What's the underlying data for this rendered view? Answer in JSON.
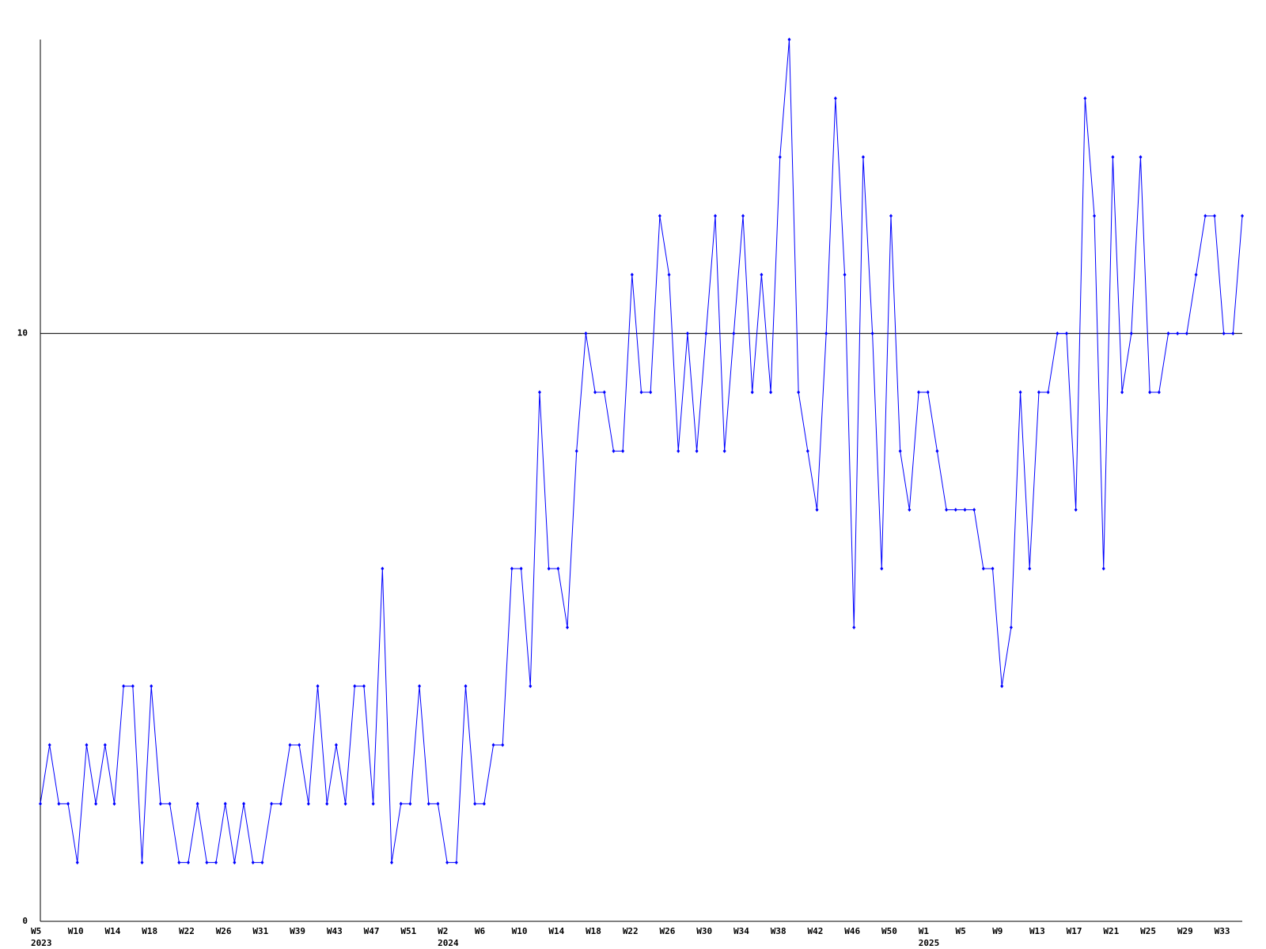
{
  "chart_data": {
    "type": "line",
    "categories": [
      "W5\n2023",
      null,
      null,
      null,
      "W10",
      null,
      null,
      null,
      "W14",
      null,
      null,
      null,
      "W18",
      null,
      null,
      null,
      "W22",
      null,
      null,
      null,
      "W26",
      null,
      null,
      null,
      "W31",
      null,
      null,
      null,
      "W39",
      null,
      null,
      null,
      "W43",
      null,
      null,
      null,
      "W47",
      null,
      null,
      null,
      "W51",
      null,
      null,
      null,
      "W2\n2024",
      null,
      null,
      null,
      "W6",
      null,
      null,
      null,
      "W10",
      null,
      null,
      null,
      "W14",
      null,
      null,
      null,
      "W18",
      null,
      null,
      null,
      "W22",
      null,
      null,
      null,
      "W26",
      null,
      null,
      null,
      "W30",
      null,
      null,
      null,
      "W34",
      null,
      null,
      null,
      "W38",
      null,
      null,
      null,
      "W42",
      null,
      null,
      null,
      "W46",
      null,
      null,
      null,
      "W50",
      null,
      null,
      null,
      "W1\n2025",
      null,
      null,
      null,
      "W5",
      null,
      null,
      null,
      "W9",
      null,
      null,
      null,
      "W13",
      null,
      null,
      null,
      "W17",
      null,
      null,
      null,
      "W21",
      null,
      null,
      null,
      "W25",
      null,
      null,
      null,
      "W29",
      null,
      null,
      null,
      "W33",
      null,
      null
    ],
    "series": [
      {
        "color": "#0000ff",
        "values": [
          2,
          3,
          2,
          2,
          1,
          3,
          2,
          3,
          2,
          4,
          4,
          1,
          4,
          2,
          2,
          1,
          1,
          2,
          1,
          1,
          2,
          1,
          2,
          1,
          1,
          2,
          2,
          3,
          3,
          2,
          4,
          2,
          3,
          2,
          4,
          4,
          2,
          6,
          1,
          2,
          2,
          4,
          2,
          2,
          1,
          1,
          4,
          2,
          2,
          3,
          3,
          6,
          6,
          4,
          9,
          6,
          6,
          5,
          8,
          10,
          9,
          9,
          8,
          8,
          11,
          9,
          9,
          12,
          11,
          8,
          10,
          8,
          10,
          12,
          8,
          10,
          12,
          9,
          11,
          9,
          13,
          15,
          9,
          8,
          7,
          10,
          14,
          11,
          5,
          13,
          10,
          6,
          12,
          8,
          7,
          9,
          9,
          8,
          7,
          7,
          7,
          7,
          6,
          6,
          4,
          5,
          9,
          6,
          9,
          9,
          10,
          10,
          7,
          14,
          12,
          6,
          13,
          9,
          10,
          13,
          9,
          9,
          10,
          10,
          10,
          11,
          12,
          12,
          10,
          10,
          12
        ]
      }
    ],
    "ylim": [
      0,
      15
    ],
    "yticks": [
      0,
      10
    ],
    "grid": true
  }
}
